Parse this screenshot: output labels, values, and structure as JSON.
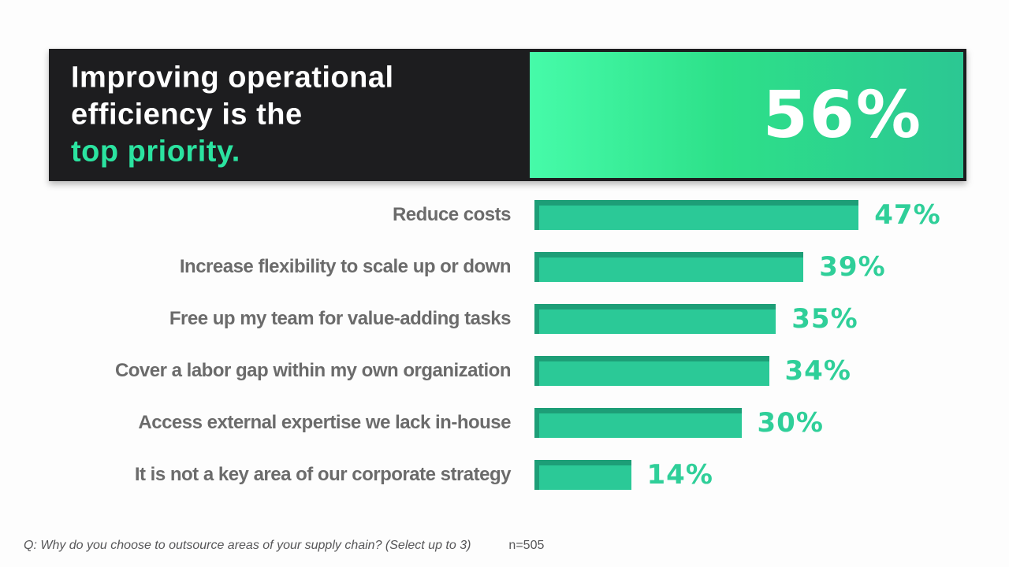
{
  "banner": {
    "line1": "Improving operational",
    "line2": "efficiency is the",
    "highlight": "top priority.",
    "value": "56%"
  },
  "footer": {
    "question": "Q: Why do you choose to outsource areas of your supply chain? (Select up to 3)",
    "sample_size": "n=505"
  },
  "colors": {
    "banner-bg": "#1d1d1f",
    "accent-mint": "#2be3a0",
    "grad-left": "#46fba9",
    "grad-mid": "#2de089",
    "grad-right": "#2cc793",
    "bar-fill": "#2bc997",
    "bar-shade": "#1d9e77",
    "pct-green": "#2fcf99",
    "label-gray": "#6b6b6b",
    "footer-gray": "#565658"
  },
  "chart_data": {
    "type": "bar",
    "orientation": "horizontal",
    "title": "Improving operational efficiency is the top priority.",
    "highlight_value": 56,
    "categories": [
      "Reduce costs",
      "Increase flexibility to scale up or down",
      "Free up my team for value-adding tasks",
      "Cover a labor gap within my own organization",
      "Access external expertise we lack in-house",
      "It is not a key area of our corporate strategy"
    ],
    "values": [
      47,
      39,
      35,
      34,
      30,
      14
    ],
    "value_suffix": "%",
    "unit": "percent of respondents",
    "xlim": [
      0,
      100
    ],
    "grid": false,
    "legend": false,
    "note": "Q: Why do you choose to outsource areas of your supply chain? (Select up to 3), n=505"
  }
}
